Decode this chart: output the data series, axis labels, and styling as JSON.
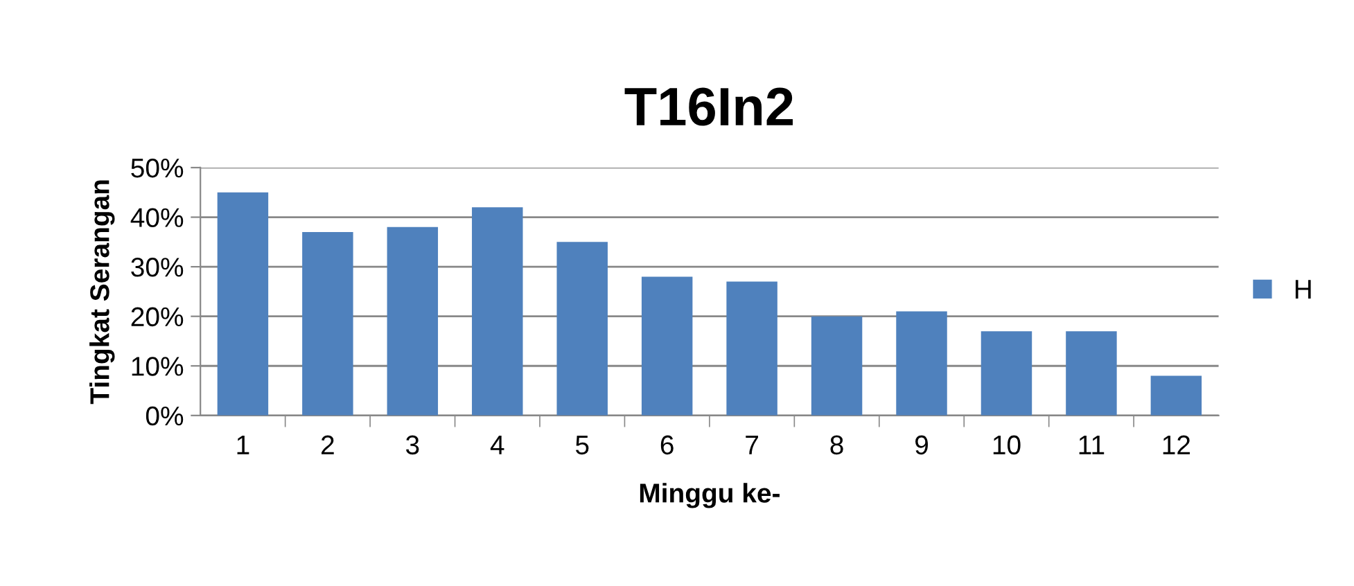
{
  "chart_data": {
    "type": "bar",
    "title": "T16In2",
    "xlabel": "Minggu ke-",
    "ylabel": "Tingkat Serangan",
    "categories": [
      "1",
      "2",
      "3",
      "4",
      "5",
      "6",
      "7",
      "8",
      "9",
      "10",
      "11",
      "12"
    ],
    "series": [
      {
        "name": "H",
        "color": "#4f81bd",
        "values": [
          45,
          37,
          38,
          42,
          35,
          28,
          27,
          20,
          21,
          17,
          17,
          8
        ]
      }
    ],
    "ylim": [
      0,
      50
    ],
    "yticks": [
      {
        "value": 0,
        "label": "0%"
      },
      {
        "value": 10,
        "label": "10%"
      },
      {
        "value": 20,
        "label": "20%"
      },
      {
        "value": 30,
        "label": "30%"
      },
      {
        "value": 40,
        "label": "40%"
      },
      {
        "value": 50,
        "label": "50%"
      }
    ],
    "grid": "y",
    "legend": "right"
  }
}
